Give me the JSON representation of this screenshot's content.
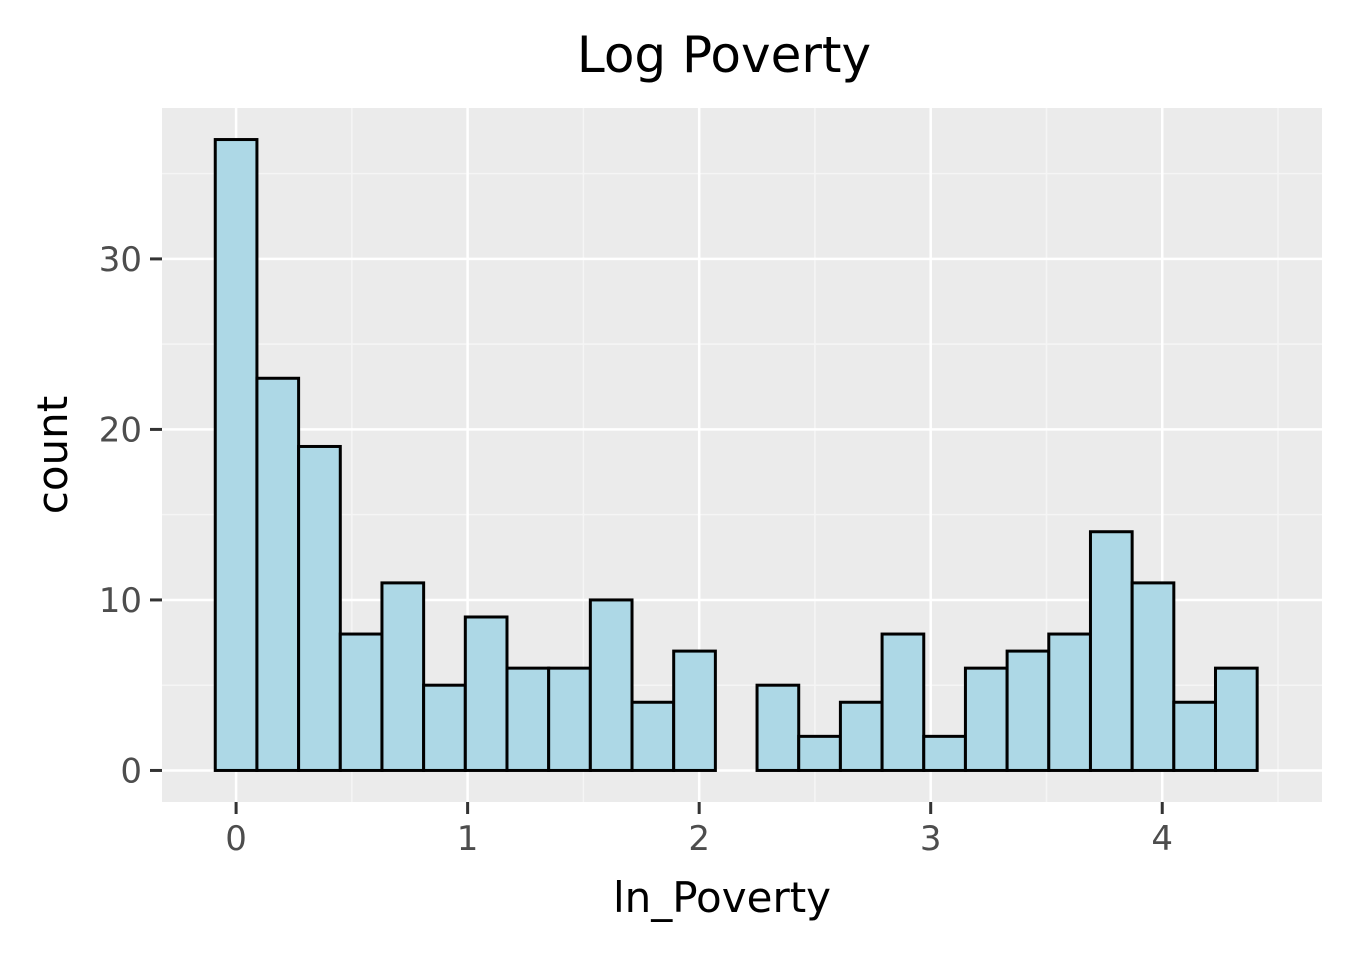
{
  "chart_data": {
    "type": "bar",
    "title": "Log Poverty",
    "xlabel": "ln_Poverty",
    "ylabel": "count",
    "bin_width": 0.18,
    "bins_start": -0.09,
    "values": [
      37,
      23,
      19,
      8,
      11,
      5,
      9,
      6,
      6,
      10,
      4,
      7,
      0,
      5,
      2,
      4,
      8,
      2,
      6,
      7,
      8,
      14,
      11,
      4,
      6
    ],
    "x_ticks": [
      0,
      1,
      2,
      3,
      4
    ],
    "x_tick_labels": [
      "0",
      "1",
      "2",
      "3",
      "4"
    ],
    "y_ticks": [
      0,
      10,
      20,
      30
    ],
    "y_tick_labels": [
      "0",
      "10",
      "20",
      "30"
    ],
    "xlim": [
      -0.32,
      4.69
    ],
    "ylim": [
      -1.85,
      38.85
    ],
    "grid": true,
    "colors": {
      "panel_background": "#ebebeb",
      "grid_major": "#ffffff",
      "grid_minor": "#f5f5f5",
      "bar_fill": "#add8e6",
      "bar_edge": "#000000",
      "tick_label": "#4d4d4d",
      "tick_mark": "#333333"
    }
  }
}
